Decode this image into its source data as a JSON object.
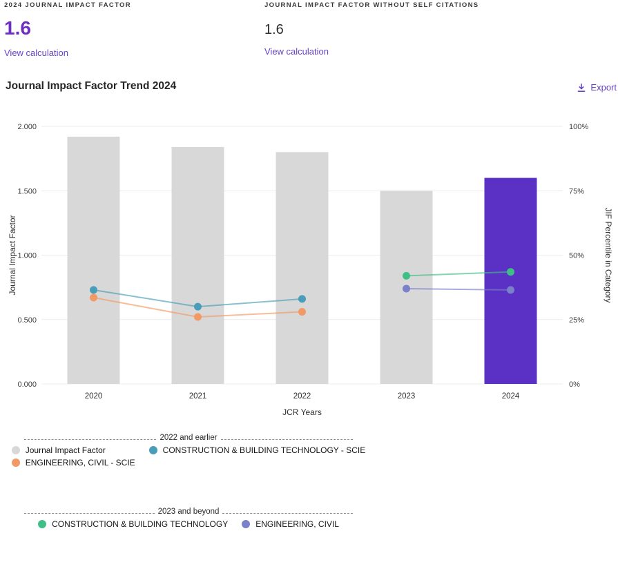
{
  "colors": {
    "accent_value": "#6d2fc2",
    "accent_link": "#6742c8",
    "bar_gray": "#d8d8d8",
    "bar_highlight": "#5b30c4",
    "gridline": "#ececec",
    "tick_text": "#3d3d3d"
  },
  "stats": {
    "left": {
      "label": "2024 JOURNAL IMPACT FACTOR",
      "value": "1.6",
      "link": "View calculation"
    },
    "right": {
      "label": "JOURNAL IMPACT FACTOR WITHOUT SELF CITATIONS",
      "value": "1.6",
      "link": "View calculation"
    }
  },
  "section": {
    "title": "Journal Impact Factor Trend 2024",
    "export_label": "Export"
  },
  "chart_data": {
    "type": "bar+line",
    "title": "Journal Impact Factor Trend 2024",
    "categories": [
      "2020",
      "2021",
      "2022",
      "2023",
      "2024"
    ],
    "bars": {
      "name": "Journal Impact Factor",
      "values": [
        1.92,
        1.84,
        1.8,
        1.5,
        1.6
      ],
      "color": "#d8d8d8",
      "highlight_index": 4,
      "highlight_color": "#5b30c4",
      "axis": "left"
    },
    "series": [
      {
        "name": "CONSTRUCTION & BUILDING TECHNOLOGY - SCIE",
        "axis": "right",
        "color": "#4a9db8",
        "x": [
          "2020",
          "2021",
          "2022"
        ],
        "values": [
          36.5,
          30,
          33
        ]
      },
      {
        "name": "ENGINEERING, CIVIL - SCIE",
        "axis": "right",
        "color": "#f29a66",
        "x": [
          "2020",
          "2021",
          "2022"
        ],
        "values": [
          33.5,
          26,
          28
        ]
      },
      {
        "name": "CONSTRUCTION & BUILDING TECHNOLOGY",
        "axis": "right",
        "color": "#3fbf85",
        "x": [
          "2023",
          "2024"
        ],
        "values": [
          42,
          43.5
        ]
      },
      {
        "name": "ENGINEERING, CIVIL",
        "axis": "right",
        "color": "#7b80ca",
        "x": [
          "2023",
          "2024"
        ],
        "values": [
          37,
          36.5
        ]
      }
    ],
    "left_axis": {
      "label": "Journal Impact Factor",
      "ticks": [
        "0.000",
        "0.500",
        "1.000",
        "1.500",
        "2.000"
      ],
      "range": [
        0,
        2
      ]
    },
    "right_axis": {
      "label": "JIF Percentile in Category",
      "ticks": [
        "0%",
        "25%",
        "50%",
        "75%",
        "100%"
      ],
      "range": [
        0,
        100
      ]
    },
    "xlabel": "JCR Years",
    "grid": true,
    "legend_position": "bottom-left",
    "legends": [
      {
        "title": "2022 and earlier",
        "items": [
          {
            "label": "Journal Impact Factor",
            "color": "#d8d8d8"
          },
          {
            "label": "CONSTRUCTION & BUILDING TECHNOLOGY - SCIE",
            "color": "#4a9db8"
          },
          {
            "label": "ENGINEERING, CIVIL - SCIE",
            "color": "#f29a66"
          }
        ]
      },
      {
        "title": "2023 and beyond",
        "items": [
          {
            "label": "CONSTRUCTION & BUILDING TECHNOLOGY",
            "color": "#3fbf85"
          },
          {
            "label": "ENGINEERING, CIVIL",
            "color": "#7b80ca"
          }
        ]
      }
    ]
  }
}
